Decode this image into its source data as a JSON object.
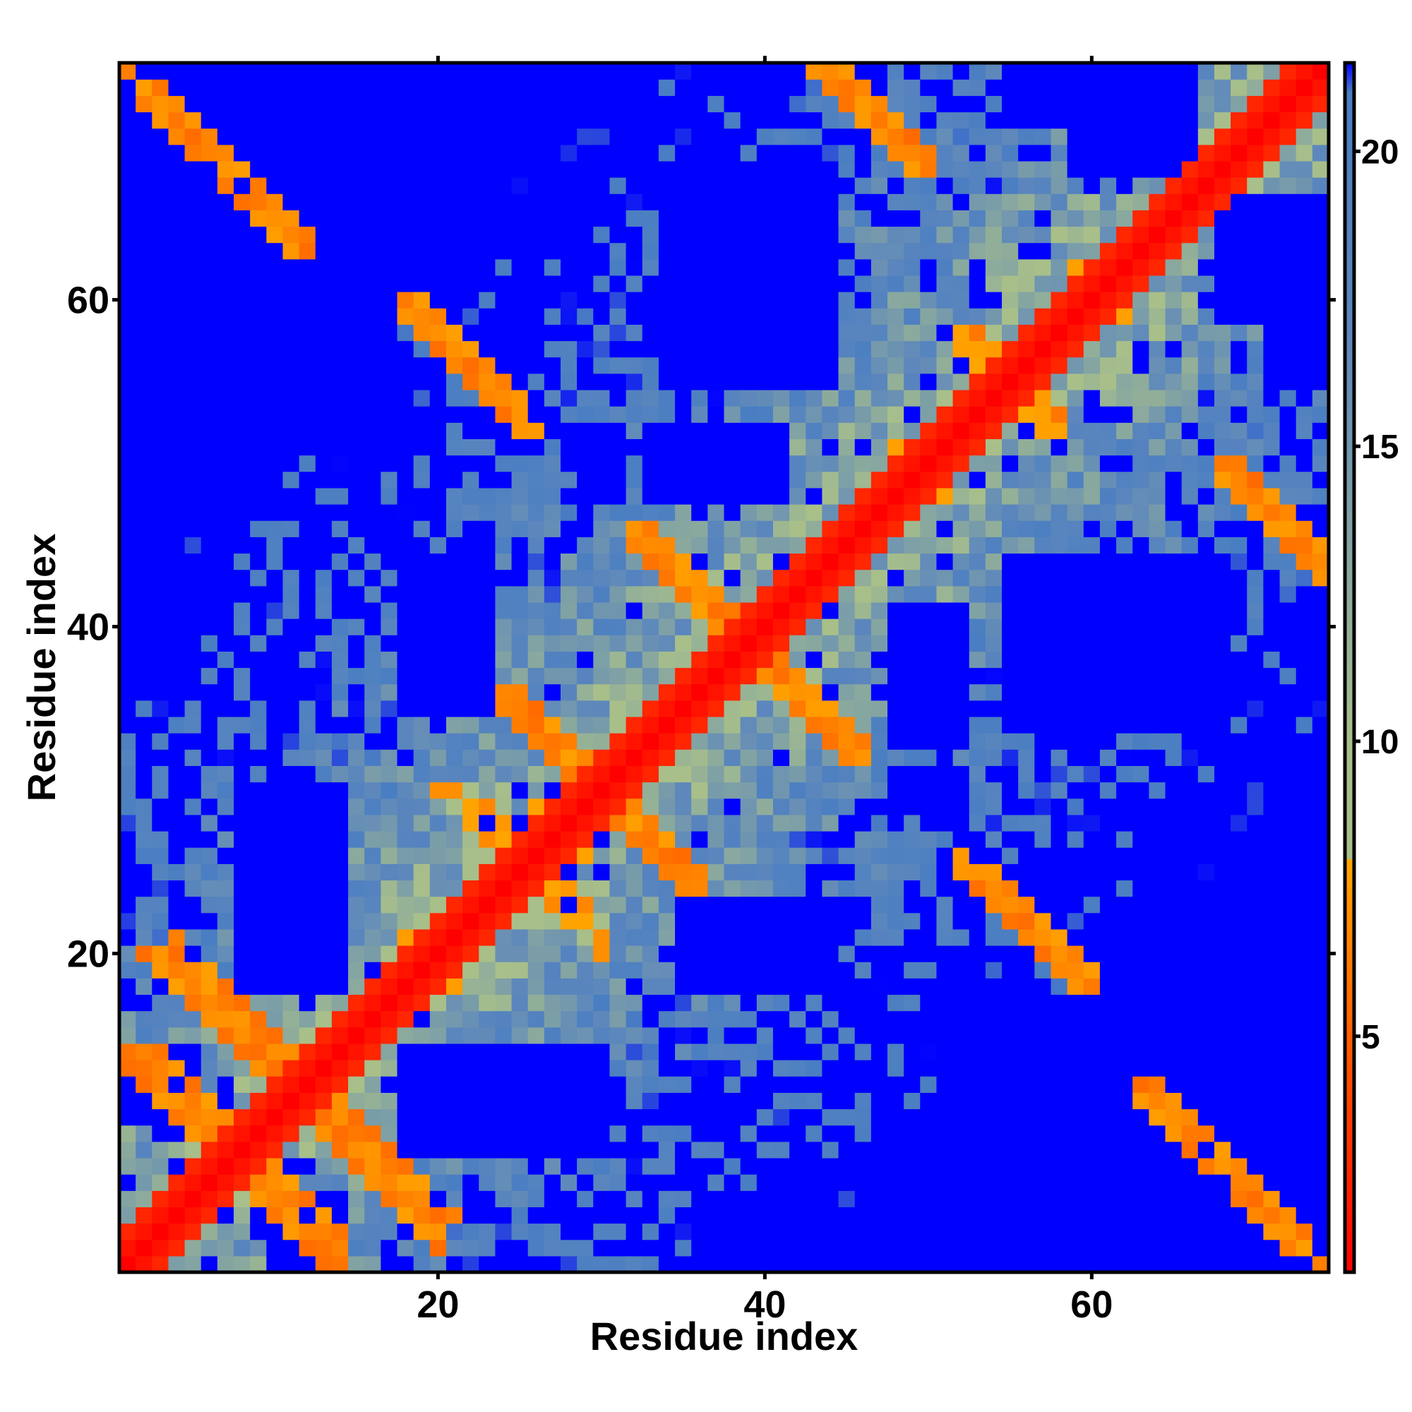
{
  "chart_data": {
    "type": "heatmap",
    "title": "",
    "xlabel": "Residue index",
    "ylabel": "Residue index",
    "n_residues": 74,
    "xlim": [
      0.5,
      74.5
    ],
    "ylim": [
      0.5,
      74.5
    ],
    "x_ticks": [
      20,
      40,
      60
    ],
    "y_ticks": [
      20,
      40,
      60
    ],
    "x_tick_labels": [
      "20",
      "40",
      "60"
    ],
    "y_tick_labels": [
      "20",
      "40",
      "60"
    ],
    "colorbar": {
      "range": [
        1,
        21.5
      ],
      "ticks": [
        5,
        10,
        15,
        20
      ],
      "tick_labels": [
        "5",
        "10",
        "15",
        "20"
      ],
      "stops": [
        {
          "value": 1,
          "color": "#ff0000"
        },
        {
          "value": 8,
          "color": "#ffa500"
        },
        {
          "value": 8.001,
          "color": "#a8bf8a"
        },
        {
          "value": 10,
          "color": "#a8bf8a"
        },
        {
          "value": 17,
          "color": "#5b86bd"
        },
        {
          "value": 21,
          "color": "#4a7ec2"
        },
        {
          "value": 21.5,
          "color": "#0000ff"
        }
      ],
      "saturated_color": "#0000ff"
    },
    "distance_scale": 4.7,
    "diagonal_band": 2,
    "contact_blocks": [
      {
        "i": [
          1,
          12
        ],
        "j": [
          63,
          74
        ],
        "orientation": "anti",
        "value": 5.5
      },
      {
        "i": [
          2,
          14
        ],
        "j": [
          1,
          14
        ],
        "orientation": "anti",
        "value": 5.5
      },
      {
        "i": [
          4,
          20
        ],
        "j": [
          1,
          22
        ],
        "orientation": "anti",
        "value": 5.5
      },
      {
        "i": [
          18,
          26
        ],
        "j": [
          52,
          60
        ],
        "orientation": "anti",
        "value": 5.5
      },
      {
        "i": [
          24,
          36
        ],
        "j": [
          24,
          36
        ],
        "orientation": "anti",
        "value": 5.5
      },
      {
        "i": [
          32,
          42
        ],
        "j": [
          36,
          46
        ],
        "orientation": "anti",
        "value": 5.5
      },
      {
        "i": [
          42,
          50
        ],
        "j": [
          68,
          76
        ],
        "orientation": "anti",
        "value": 5.5
      },
      {
        "i": [
          24,
          30
        ],
        "j": [
          20,
          28
        ],
        "orientation": "anti",
        "value": 6
      },
      {
        "i": [
          52,
          58
        ],
        "j": [
          52,
          58
        ],
        "orientation": "anti",
        "value": 6
      }
    ],
    "blue_regions": [
      {
        "x": [
          7,
          15
        ],
        "y": [
          52,
          67
        ]
      },
      {
        "x": [
          34,
          44
        ],
        "y": [
          55,
          68
        ]
      },
      {
        "x": [
          34,
          41
        ],
        "y": [
          48,
          52
        ]
      },
      {
        "x": [
          8,
          14
        ],
        "y": [
          19,
          27
        ]
      },
      {
        "x": [
          18,
          30
        ],
        "y": [
          8,
          14
        ]
      },
      {
        "x": [
          35,
          44
        ],
        "y": [
          18,
          23
        ]
      },
      {
        "x": [
          53,
          66
        ],
        "y": [
          8,
          15
        ]
      },
      {
        "x": [
          56,
          68
        ],
        "y": [
          35,
          43
        ]
      },
      {
        "x": [
          48,
          52
        ],
        "y": [
          33,
          39
        ]
      },
      {
        "x": [
          1,
          4
        ],
        "y": [
          36,
          45
        ]
      },
      {
        "x": [
          1,
          3
        ],
        "y": [
          47,
          56
        ]
      },
      {
        "x": [
          1,
          5
        ],
        "y": [
          10,
          14
        ]
      },
      {
        "x": [
          19,
          23
        ],
        "y": [
          64,
          74
        ]
      },
      {
        "x": [
          59,
          66
        ],
        "y": [
          68,
          74
        ]
      },
      {
        "x": [
          71,
          74
        ],
        "y": [
          17,
          24
        ]
      },
      {
        "x": [
          71,
          74
        ],
        "y": [
          55,
          65
        ]
      },
      {
        "x": [
          36,
          44
        ],
        "y": [
          1,
          5
        ]
      },
      {
        "x": [
          19,
          23
        ],
        "y": [
          37,
          43
        ]
      },
      {
        "x": [
          48,
          51
        ],
        "y": [
          29,
          31
        ]
      },
      {
        "x": [
          10,
          13
        ],
        "y": [
          1,
          3
        ]
      },
      {
        "x": [
          1,
          6
        ],
        "y": [
          71,
          74
        ]
      }
    ]
  }
}
